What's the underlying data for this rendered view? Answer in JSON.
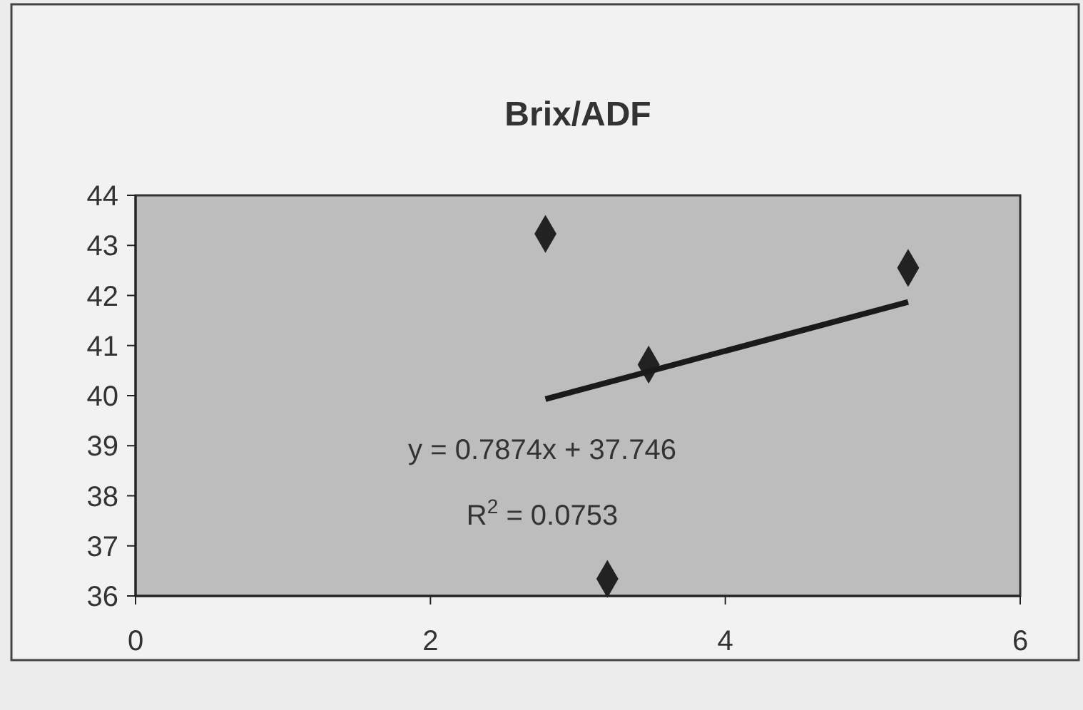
{
  "chart_data": {
    "type": "scatter",
    "title": "Brix/ADF",
    "grid": false,
    "xlim": [
      0,
      6
    ],
    "xticks": [
      0,
      2,
      4,
      6
    ],
    "ylim": [
      36,
      44
    ],
    "yticks": [
      36,
      37,
      38,
      39,
      40,
      41,
      42,
      43,
      44
    ],
    "series": [
      {
        "color": "#222222",
        "marker": "diamond",
        "x": [
          2.78,
          3.2,
          3.48,
          5.24
        ],
        "values": [
          43.23,
          36.34,
          40.62,
          42.55
        ]
      },
      {
        "type": "line",
        "color": "#1a1a1a",
        "x": [
          2.78,
          5.24
        ],
        "values": [
          39.93,
          41.87
        ]
      }
    ],
    "annotations": [
      "y = 0.7874x + 37.746",
      "R$^{2}$ = 0.0753"
    ]
  }
}
